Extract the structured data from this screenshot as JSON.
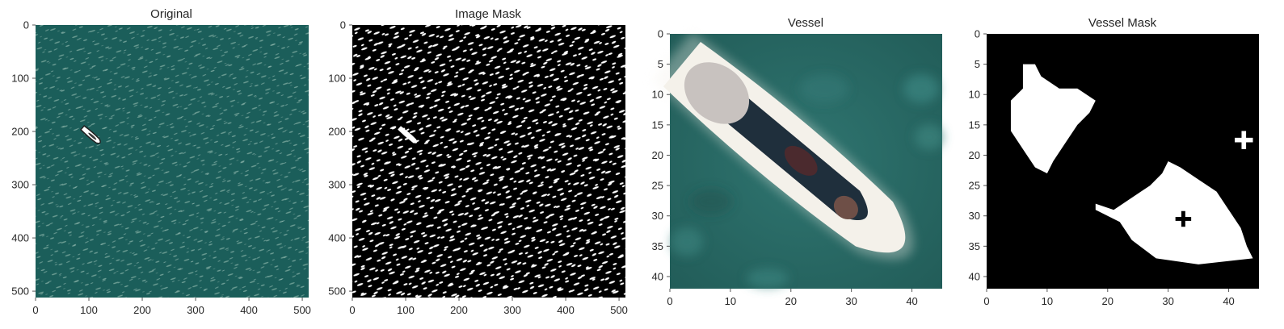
{
  "chart_data": [
    {
      "type": "image",
      "title": "Original",
      "xlim": [
        0,
        512
      ],
      "ylim": [
        512,
        0
      ],
      "xticks": [
        0,
        100,
        200,
        300,
        400,
        500
      ],
      "yticks": [
        0,
        100,
        200,
        300,
        400,
        500
      ],
      "grid": false,
      "image_style": "sea",
      "colors": {
        "background": "#1b5e5a",
        "glint": "#8fb8ac",
        "hull": "#ffffff",
        "hull_shadow": "#222222"
      },
      "objects": [
        {
          "kind": "boat",
          "x_from": 88,
          "y_from": 193,
          "x_to": 125,
          "y_to": 225,
          "width": 12
        }
      ]
    },
    {
      "type": "image",
      "title": "Image Mask",
      "xlim": [
        0,
        512
      ],
      "ylim": [
        512,
        0
      ],
      "xticks": [
        0,
        100,
        200,
        300,
        400,
        500
      ],
      "yticks": [
        0,
        100,
        200,
        300,
        400,
        500
      ],
      "grid": false,
      "image_style": "binary",
      "colors": {
        "background": "#000000",
        "foreground": "#ffffff"
      },
      "objects": [
        {
          "kind": "boat",
          "x_from": 88,
          "y_from": 193,
          "x_to": 125,
          "y_to": 225,
          "width": 11
        }
      ]
    },
    {
      "type": "image",
      "title": "Vessel",
      "xlim": [
        0,
        45
      ],
      "ylim": [
        42,
        0
      ],
      "xticks": [
        0,
        10,
        20,
        30,
        40
      ],
      "yticks": [
        0,
        5,
        10,
        15,
        20,
        25,
        30,
        35,
        40
      ],
      "grid": false,
      "image_style": "vessel",
      "colors": {
        "water": "#2a6b66",
        "water_dark": "#1c4d49",
        "hull": "#f4f1ea",
        "deck": "#1f2f3c",
        "cabin": "#c8c2bf"
      },
      "objects": [
        {
          "kind": "boat",
          "x_from": 2,
          "y_from": 5,
          "x_to": 43,
          "y_to": 39,
          "width": 12
        }
      ]
    },
    {
      "type": "image",
      "title": "Vessel Mask",
      "xlim": [
        0,
        45
      ],
      "ylim": [
        42,
        0
      ],
      "xticks": [
        0,
        10,
        20,
        30,
        40
      ],
      "yticks": [
        0,
        5,
        10,
        15,
        20,
        25,
        30,
        35,
        40
      ],
      "grid": false,
      "image_style": "binary_blobs",
      "colors": {
        "background": "#000000",
        "foreground": "#ffffff"
      },
      "blobs": [
        {
          "name": "upper-blob",
          "points": [
            [
              6,
              5
            ],
            [
              8,
              5
            ],
            [
              9,
              7
            ],
            [
              12,
              9
            ],
            [
              15,
              9
            ],
            [
              18,
              11
            ],
            [
              17,
              13
            ],
            [
              15,
              15
            ],
            [
              13,
              18
            ],
            [
              11,
              21
            ],
            [
              10,
              23
            ],
            [
              8,
              22
            ],
            [
              6,
              19
            ],
            [
              4,
              16
            ],
            [
              4,
              11
            ],
            [
              5,
              10
            ],
            [
              6,
              9
            ]
          ]
        },
        {
          "name": "lower-blob",
          "points": [
            [
              18,
              28
            ],
            [
              21,
              29
            ],
            [
              24,
              27
            ],
            [
              27,
              25
            ],
            [
              29,
              23
            ],
            [
              30,
              21
            ],
            [
              32,
              22
            ],
            [
              35,
              24
            ],
            [
              38,
              26
            ],
            [
              40,
              29
            ],
            [
              42,
              32
            ],
            [
              43,
              35
            ],
            [
              44,
              37
            ],
            [
              35,
              38
            ],
            [
              28,
              37
            ],
            [
              24,
              34
            ],
            [
              22,
              31
            ],
            [
              20,
              30
            ],
            [
              18,
              29
            ]
          ]
        }
      ],
      "holes": [
        {
          "name": "hole-cross",
          "x": 32.5,
          "y": 30.5,
          "size": 1.3
        }
      ],
      "crosses": [
        {
          "name": "cross-right",
          "x": 42.5,
          "y": 17.5,
          "size": 1.5
        }
      ]
    }
  ]
}
